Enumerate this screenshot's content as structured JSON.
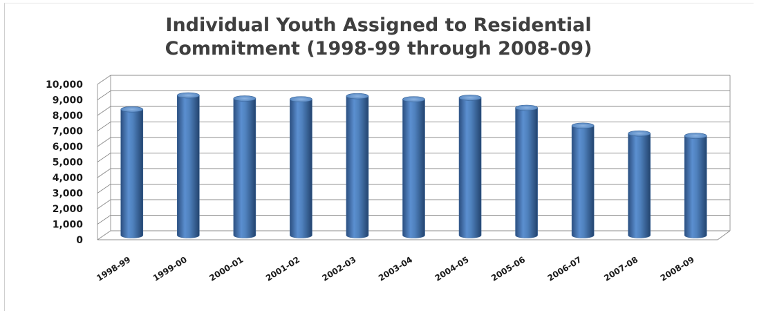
{
  "chart_data": {
    "type": "bar",
    "style": "3d-cylinder",
    "title_lines": [
      "Individual Youth Assigned to Residential",
      "Commitment (1998-99 through 2008-09)"
    ],
    "categories": [
      "1998-99",
      "1999-00",
      "2000-01",
      "2001-02",
      "2002-03",
      "2003-04",
      "2004-05",
      "2005-06",
      "2006-07",
      "2007-08",
      "2008-09"
    ],
    "values": [
      8100,
      9000,
      8800,
      8750,
      8950,
      8750,
      8850,
      8200,
      7050,
      6550,
      6400
    ],
    "xlabel": "",
    "ylabel": "",
    "ylim": [
      0,
      10000
    ],
    "yticks": [
      0,
      1000,
      2000,
      3000,
      4000,
      5000,
      6000,
      7000,
      8000,
      9000,
      10000
    ],
    "ytick_labels": [
      "0",
      "1,000",
      "2,000",
      "3,000",
      "4,000",
      "5,000",
      "6,000",
      "7,000",
      "8,000",
      "9,000",
      "10,000"
    ],
    "grid": true,
    "legend": "none",
    "bar_color": "#4f81bd"
  }
}
